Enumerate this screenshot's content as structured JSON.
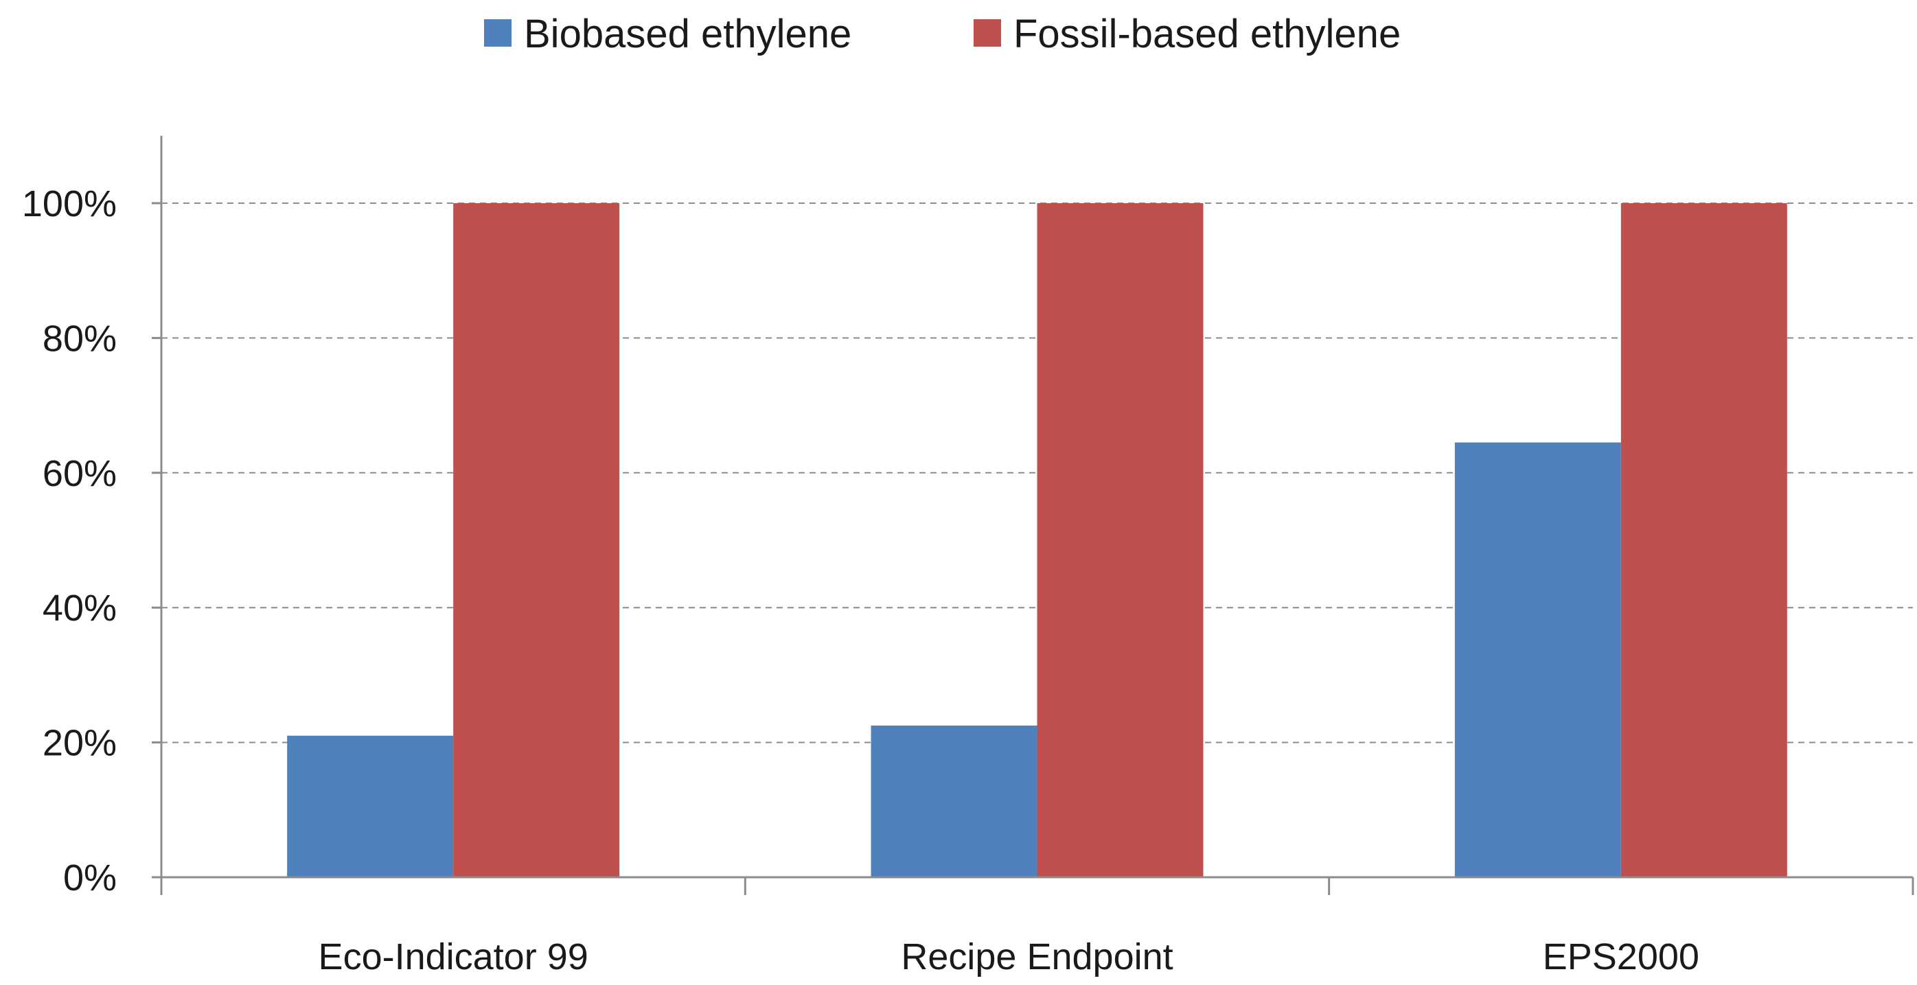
{
  "chart_data": {
    "type": "bar",
    "title": "",
    "xlabel": "",
    "ylabel": "",
    "categories": [
      "Eco-Indicator 99",
      "Recipe Endpoint",
      "EPS2000"
    ],
    "series": [
      {
        "name": "Biobased ethylene",
        "values": [
          21,
          22.5,
          64.5
        ],
        "color": "#4F81BD"
      },
      {
        "name": "Fossil-based ethylene",
        "values": [
          100,
          100,
          100
        ],
        "color": "#C0504D"
      }
    ],
    "ylim": [
      0,
      110
    ],
    "yticks": [
      0,
      20,
      40,
      60,
      80,
      100
    ],
    "ytick_labels": [
      "0%",
      "20%",
      "40%",
      "60%",
      "80%",
      "100%"
    ],
    "grid": true,
    "grid_style": "dashed",
    "legend_position": "top-center"
  }
}
